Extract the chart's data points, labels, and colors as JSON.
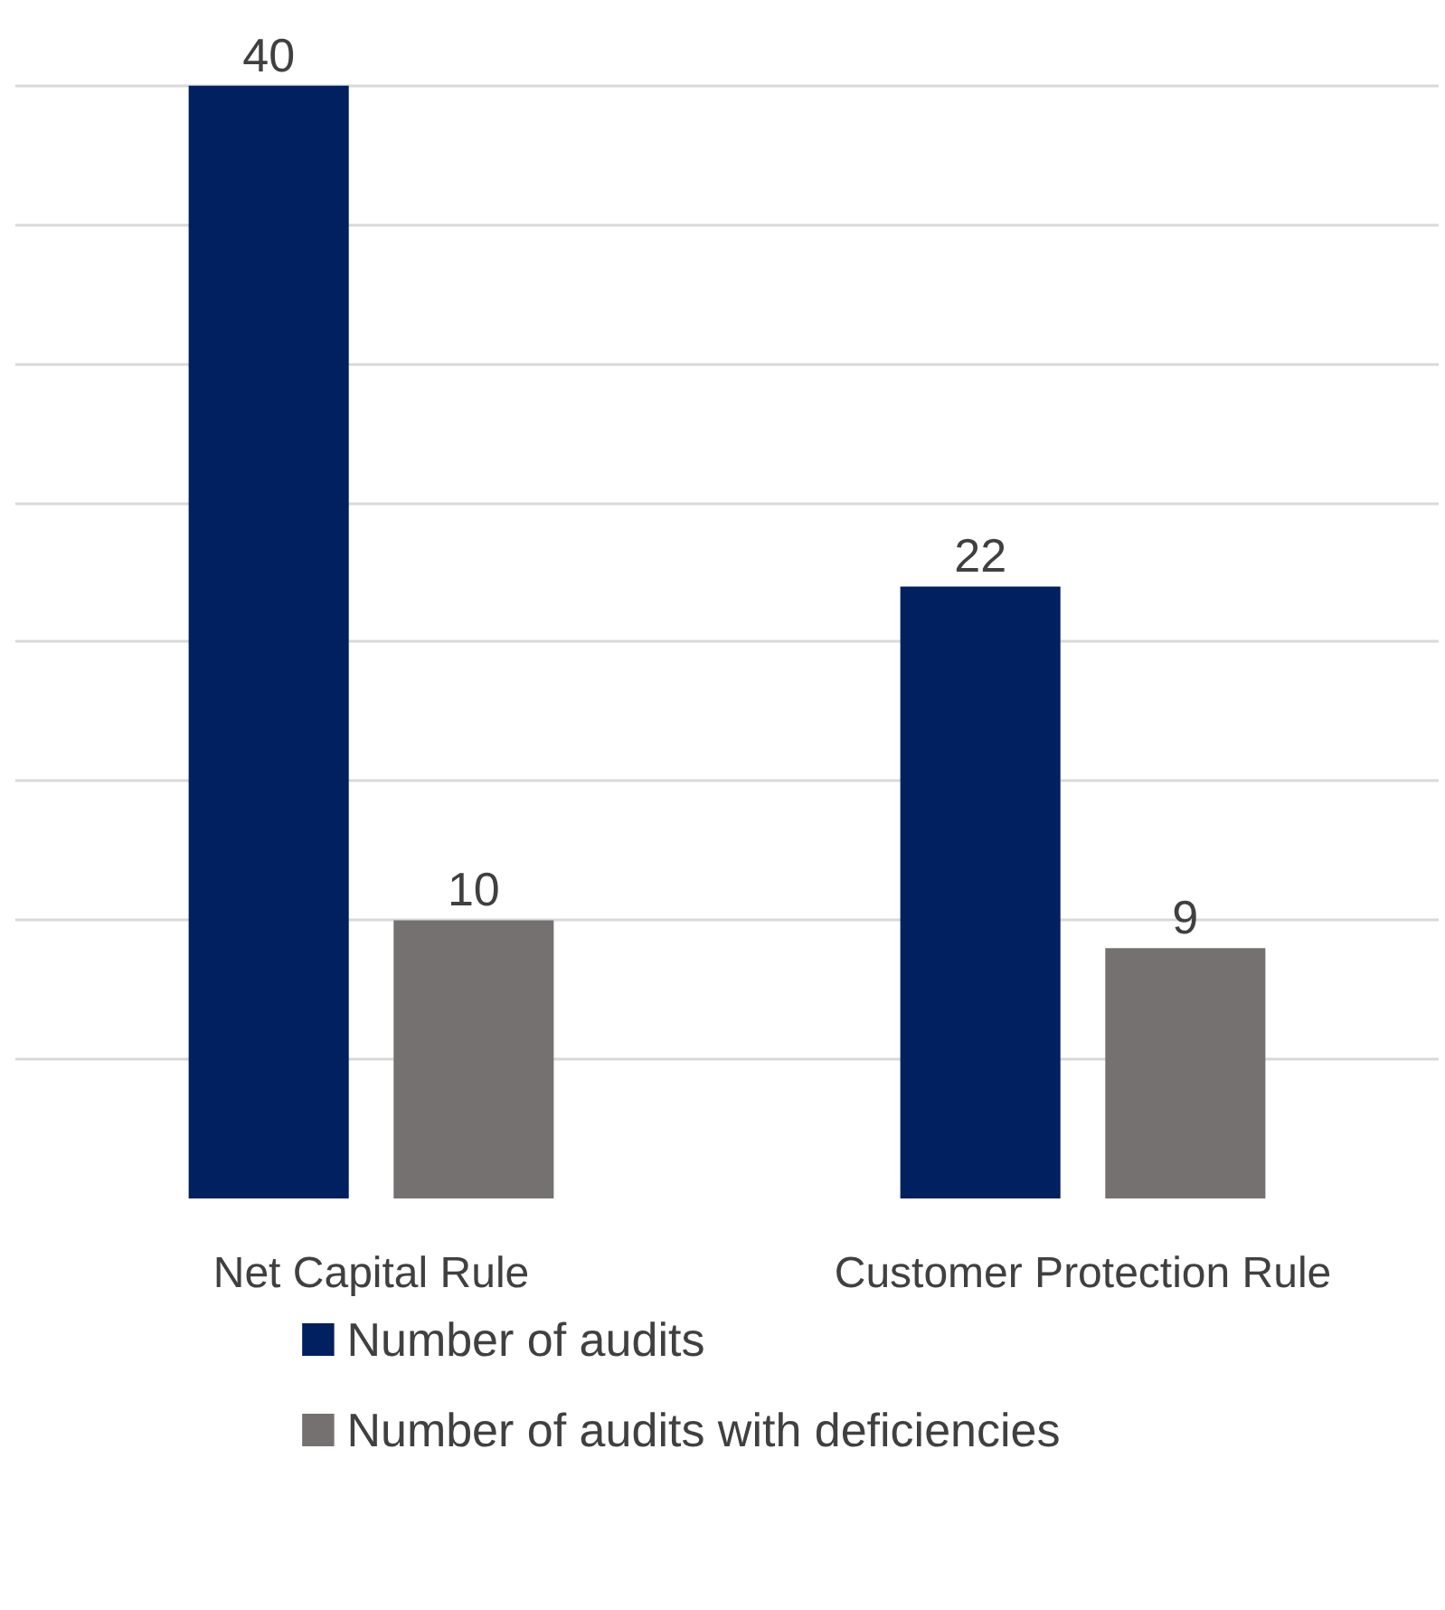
{
  "chart_data": {
    "type": "bar",
    "categories": [
      "Net Capital Rule",
      "Customer Protection Rule"
    ],
    "series": [
      {
        "name": "Number of audits",
        "color": "#002060",
        "values": [
          40,
          22
        ]
      },
      {
        "name": "Number of audits with deficiencies",
        "color": "#767171",
        "values": [
          10,
          9
        ]
      }
    ],
    "grid": "y",
    "tick_labels": "x",
    "data_labels": true,
    "legend": "bottom"
  }
}
